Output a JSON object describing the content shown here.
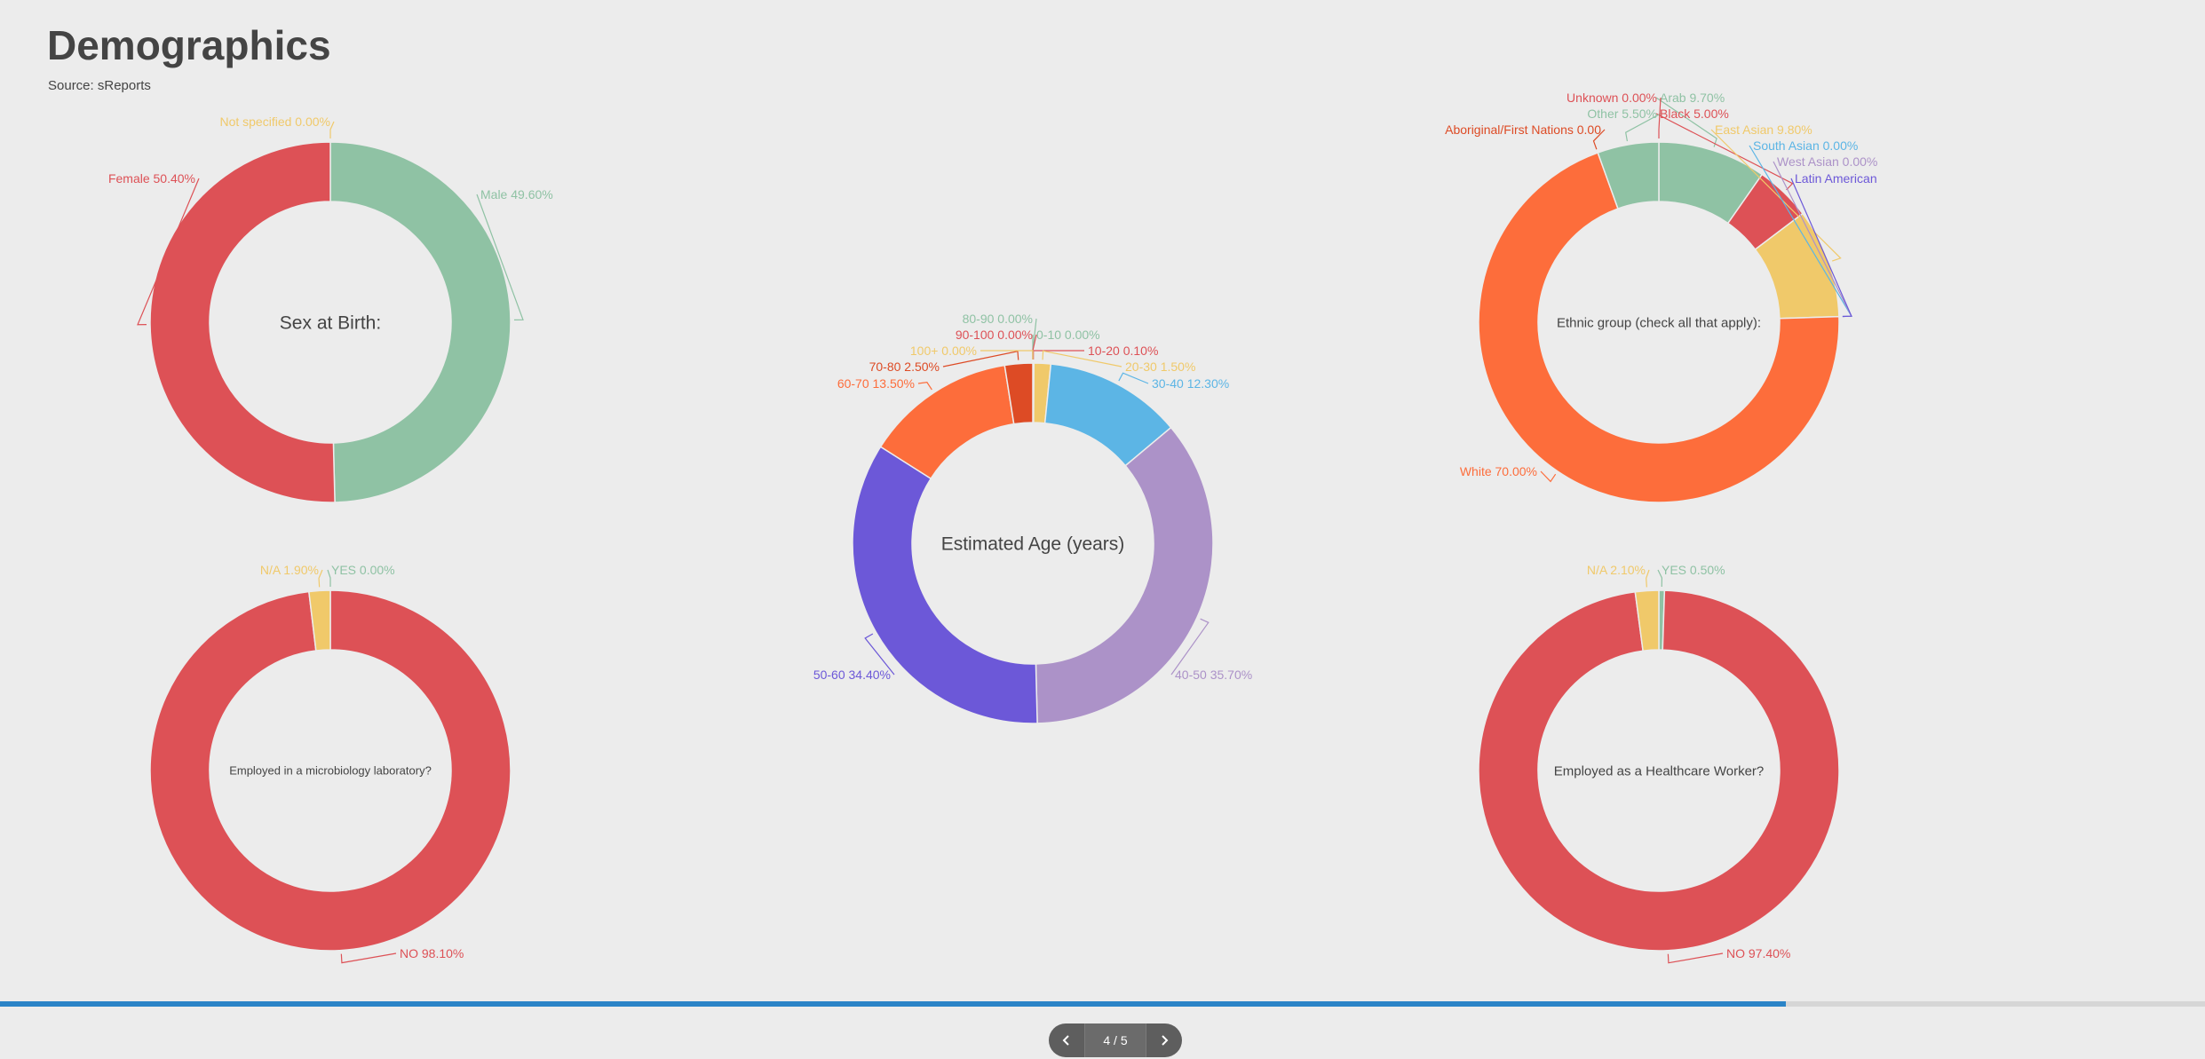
{
  "header": {
    "title": "Demographics",
    "source": "Source: sReports"
  },
  "pager": {
    "label": "4 / 5",
    "progress": 0.81
  },
  "icons": {
    "prev": "chevron-left-icon",
    "next": "chevron-right-icon"
  },
  "chart_data": [
    {
      "id": "sex",
      "type": "donut",
      "center_label": "Sex at Birth:",
      "slices": [
        {
          "label": "Male",
          "value": 49.6,
          "text": "Male 49.60%",
          "color": "#8fc2a4"
        },
        {
          "label": "Female",
          "value": 50.4,
          "text": "Female 50.40%",
          "color": "#dd5156"
        },
        {
          "label": "Not specified",
          "value": 0.0,
          "text": "Not specified 0.00%",
          "color": "#f0c96a"
        }
      ]
    },
    {
      "id": "age",
      "type": "donut",
      "center_label": "Estimated Age (years)",
      "slices": [
        {
          "label": "0-10",
          "value": 0.0,
          "text": "0-10 0.00%",
          "color": "#8fc2a4"
        },
        {
          "label": "10-20",
          "value": 0.1,
          "text": "10-20 0.10%",
          "color": "#dd5156"
        },
        {
          "label": "20-30",
          "value": 1.5,
          "text": "20-30 1.50%",
          "color": "#f0c96a"
        },
        {
          "label": "30-40",
          "value": 12.3,
          "text": "30-40 12.30%",
          "color": "#5cb5e5"
        },
        {
          "label": "40-50",
          "value": 35.7,
          "text": "40-50 35.70%",
          "color": "#ac92c8"
        },
        {
          "label": "50-60",
          "value": 34.4,
          "text": "50-60 34.40%",
          "color": "#6c58d8"
        },
        {
          "label": "60-70",
          "value": 13.5,
          "text": "60-70 13.50%",
          "color": "#fd6d3b"
        },
        {
          "label": "70-80",
          "value": 2.5,
          "text": "70-80 2.50%",
          "color": "#dd4b25"
        },
        {
          "label": "80-90",
          "value": 0.0,
          "text": "80-90 0.00%",
          "color": "#8fc2a4"
        },
        {
          "label": "90-100",
          "value": 0.0,
          "text": "90-100 0.00%",
          "color": "#dd5156"
        },
        {
          "label": "100+",
          "value": 0.0,
          "text": "100+ 0.00%",
          "color": "#f0c96a"
        }
      ]
    },
    {
      "id": "ethnic",
      "type": "donut",
      "center_label": "Ethnic group (check all that apply):",
      "slices": [
        {
          "label": "Arab",
          "value": 9.7,
          "text": "Arab 9.70%",
          "color": "#8fc2a4"
        },
        {
          "label": "Black",
          "value": 5.0,
          "text": "Black 5.00%",
          "color": "#dd5156"
        },
        {
          "label": "East Asian",
          "value": 9.8,
          "text": "East Asian 9.80%",
          "color": "#f0c96a"
        },
        {
          "label": "South Asian",
          "value": 0.0,
          "text": "South Asian 0.00%",
          "color": "#5cb5e5"
        },
        {
          "label": "West Asian",
          "value": 0.0,
          "text": "West Asian 0.00%",
          "color": "#ac92c8"
        },
        {
          "label": "Latin American",
          "value": 0.0,
          "text": "Latin American",
          "color": "#6c58d8"
        },
        {
          "label": "White",
          "value": 70.0,
          "text": "White 70.00%",
          "color": "#fd6d3b"
        },
        {
          "label": "Aboriginal/First Nations",
          "value": 0.0,
          "text": "Aboriginal/First Nations 0.00",
          "color": "#dd4b25"
        },
        {
          "label": "Other",
          "value": 5.5,
          "text": "Other 5.50%",
          "color": "#8fc2a4"
        },
        {
          "label": "Unknown",
          "value": 0.0,
          "text": "Unknown 0.00%",
          "color": "#dd5156"
        }
      ]
    },
    {
      "id": "micro",
      "type": "donut",
      "center_label": "Employed in a microbiology laboratory?",
      "slices": [
        {
          "label": "YES",
          "value": 0.0,
          "text": "YES 0.00%",
          "color": "#8fc2a4"
        },
        {
          "label": "NO",
          "value": 98.1,
          "text": "NO 98.10%",
          "color": "#dd5156"
        },
        {
          "label": "N/A",
          "value": 1.9,
          "text": "N/A 1.90%",
          "color": "#f0c96a"
        }
      ]
    },
    {
      "id": "hcw",
      "type": "donut",
      "center_label": "Employed as a Healthcare Worker?",
      "slices": [
        {
          "label": "YES",
          "value": 0.5,
          "text": "YES 0.50%",
          "color": "#8fc2a4"
        },
        {
          "label": "NO",
          "value": 97.4,
          "text": "NO 97.40%",
          "color": "#dd5156"
        },
        {
          "label": "N/A",
          "value": 2.1,
          "text": "N/A 2.10%",
          "color": "#f0c96a"
        }
      ]
    }
  ]
}
